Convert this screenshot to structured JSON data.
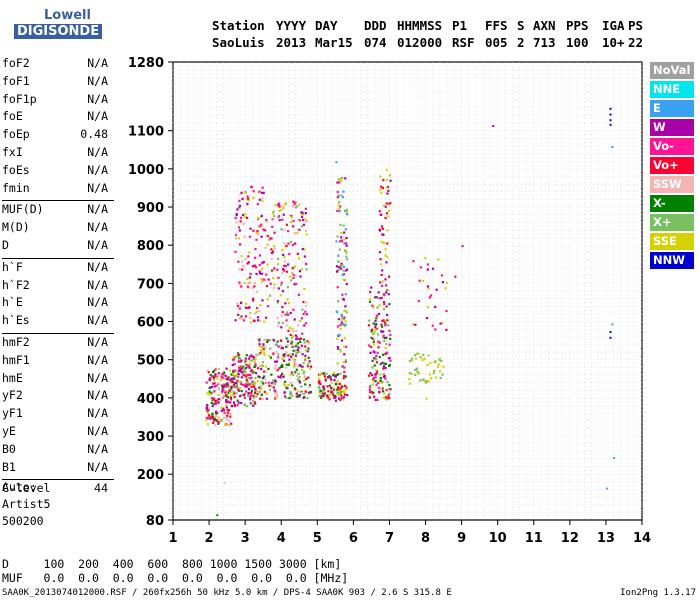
{
  "logo": {
    "line1": "Lowell",
    "line2": "DIGISONDE"
  },
  "header": {
    "row1": [
      "Station",
      "YYYY",
      "DAY",
      "DDD",
      "HHMMSS",
      "P1",
      "FFS",
      "S",
      "AXN",
      "PPS",
      "IGA",
      "PS"
    ],
    "row2": [
      "SaoLuis",
      "2013",
      "Mar15",
      "074",
      "012000",
      "RSF",
      "005",
      "2",
      "713",
      "100",
      "10+",
      "22"
    ]
  },
  "params": {
    "group1": [
      [
        "foF2",
        "N/A"
      ],
      [
        "foF1",
        "N/A"
      ],
      [
        "foF1p",
        "N/A"
      ],
      [
        "foE",
        "N/A"
      ],
      [
        "foEp",
        "0.48"
      ],
      [
        "fxI",
        "N/A"
      ],
      [
        "foEs",
        "N/A"
      ],
      [
        "fmin",
        "N/A"
      ]
    ],
    "group2": [
      [
        "MUF(D)",
        "N/A"
      ],
      [
        "M(D)",
        "N/A"
      ],
      [
        "D",
        "N/A"
      ]
    ],
    "group3": [
      [
        "h`F",
        "N/A"
      ],
      [
        "h`F2",
        "N/A"
      ],
      [
        "h`E",
        "N/A"
      ],
      [
        "h`Es",
        "N/A"
      ]
    ],
    "group4": [
      [
        "hmF2",
        "N/A"
      ],
      [
        "hmF1",
        "N/A"
      ],
      [
        "hmE",
        "N/A"
      ],
      [
        "yF2",
        "N/A"
      ],
      [
        "yF1",
        "N/A"
      ],
      [
        "yE",
        "N/A"
      ],
      [
        "B0",
        "N/A"
      ],
      [
        "B1",
        "N/A"
      ]
    ],
    "group5": [
      [
        "C-level",
        "44"
      ]
    ]
  },
  "auto": {
    "line1": "Auto:",
    "line2": "Artist5",
    "line3": "500200"
  },
  "bottom": {
    "d_line": "D     100  200  400  600  800 1000 1500 3000 [km]",
    "muf_line": "MUF   0.0  0.0  0.0  0.0  0.0  0.0  0.0  0.0 [MHz]"
  },
  "footer": {
    "left": "SAA0K_2013074012000.RSF / 260fx256h 50 kHz 5.0 km / DPS-4 SAA0K 903 / 2.6 S 315.8 E",
    "right": "Ion2Png 1.3.17"
  },
  "legend": [
    {
      "label": "NoVal",
      "color": "#a0a0a0"
    },
    {
      "label": "NNE",
      "color": "#00e5ee"
    },
    {
      "label": "E",
      "color": "#3aa0f0"
    },
    {
      "label": "W",
      "color": "#aa00aa"
    },
    {
      "label": "Vo-",
      "color": "#ff1493"
    },
    {
      "label": "Vo+",
      "color": "#ff0033"
    },
    {
      "label": "SSW",
      "color": "#f4b4b4"
    },
    {
      "label": "X-",
      "color": "#008000"
    },
    {
      "label": "X+",
      "color": "#78c060"
    },
    {
      "label": "SSE",
      "color": "#d2d200"
    },
    {
      "label": "NNW",
      "color": "#0000cc"
    }
  ],
  "chart_data": {
    "type": "scatter",
    "title": "",
    "xlabel": "",
    "ylabel": "",
    "xlim": [
      1,
      14
    ],
    "ylim": [
      80,
      1280
    ],
    "x_ticks": [
      "1",
      "2",
      "3",
      "4",
      "5",
      "6",
      "7",
      "8",
      "9",
      "10",
      "11",
      "12",
      "13",
      "14"
    ],
    "y_ticks": [
      "80",
      "200",
      "300",
      "400",
      "500",
      "600",
      "700",
      "800",
      "900",
      "1000",
      "1100",
      "1280"
    ],
    "y_tick_values": [
      80,
      200,
      300,
      400,
      500,
      600,
      700,
      800,
      900,
      1000,
      1100,
      1280
    ],
    "clusters": [
      {
        "x": [
          1.9,
          2.6
        ],
        "y": [
          330,
          480
        ],
        "density": 200,
        "mix": [
          "#ff0033",
          "#ff1493",
          "#aa00aa",
          "#f4b4b4",
          "#008000",
          "#d2d200"
        ]
      },
      {
        "x": [
          2.6,
          3.3
        ],
        "y": [
          380,
          520
        ],
        "density": 180,
        "mix": [
          "#aa00aa",
          "#ff0033",
          "#d2d200",
          "#78c060",
          "#008000",
          "#ff1493"
        ]
      },
      {
        "x": [
          2.7,
          3.6
        ],
        "y": [
          600,
          960
        ],
        "density": 160,
        "mix": [
          "#aa00aa",
          "#ff1493",
          "#ff0033",
          "#d2d200",
          "#f4b4b4"
        ]
      },
      {
        "x": [
          3.3,
          4.8
        ],
        "y": [
          400,
          560
        ],
        "density": 260,
        "mix": [
          "#aa00aa",
          "#ff0033",
          "#d2d200",
          "#008000",
          "#78c060",
          "#f4b4b4"
        ]
      },
      {
        "x": [
          3.6,
          4.7
        ],
        "y": [
          560,
          920
        ],
        "density": 180,
        "mix": [
          "#d2d200",
          "#ff0033",
          "#aa00aa",
          "#ff1493",
          "#f4b4b4",
          "#78c060"
        ]
      },
      {
        "x": [
          5.0,
          5.8
        ],
        "y": [
          395,
          470
        ],
        "density": 120,
        "mix": [
          "#d2d200",
          "#aa00aa",
          "#78c060",
          "#008000",
          "#ff0033"
        ]
      },
      {
        "x": [
          5.5,
          5.8
        ],
        "y": [
          470,
          980
        ],
        "density": 120,
        "mix": [
          "#d2d200",
          "#ff1493",
          "#aa00aa",
          "#3aa0f0",
          "#78c060"
        ]
      },
      {
        "x": [
          6.4,
          7.0
        ],
        "y": [
          395,
          700
        ],
        "density": 170,
        "mix": [
          "#aa00aa",
          "#ff0033",
          "#d2d200",
          "#78c060",
          "#008000",
          "#ff1493"
        ]
      },
      {
        "x": [
          6.7,
          7.0
        ],
        "y": [
          700,
          990
        ],
        "density": 50,
        "mix": [
          "#d2d200",
          "#ff0033",
          "#aa00aa"
        ]
      },
      {
        "x": [
          7.5,
          8.5
        ],
        "y": [
          440,
          520
        ],
        "density": 50,
        "mix": [
          "#d2d200",
          "#78c060"
        ]
      },
      {
        "x": [
          7.6,
          8.6
        ],
        "y": [
          580,
          790
        ],
        "density": 30,
        "mix": [
          "#d2d200",
          "#ff1493",
          "#aa00aa"
        ]
      }
    ],
    "points": [
      {
        "x": 9.85,
        "y": 1115,
        "c": "#aa00aa"
      },
      {
        "x": 13.1,
        "y": 1160,
        "c": "#0000cc"
      },
      {
        "x": 13.1,
        "y": 1145,
        "c": "#0000cc"
      },
      {
        "x": 13.1,
        "y": 1130,
        "c": "#0000cc"
      },
      {
        "x": 13.1,
        "y": 1118,
        "c": "#0000cc"
      },
      {
        "x": 13.15,
        "y": 1060,
        "c": "#3aa0f0"
      },
      {
        "x": 13.1,
        "y": 575,
        "c": "#0000cc"
      },
      {
        "x": 13.1,
        "y": 560,
        "c": "#0000cc"
      },
      {
        "x": 13.15,
        "y": 595,
        "c": "#3aa0f0"
      },
      {
        "x": 13.2,
        "y": 245,
        "c": "#3aa0f0"
      },
      {
        "x": 13.0,
        "y": 165,
        "c": "#3aa0f0"
      },
      {
        "x": 9.0,
        "y": 800,
        "c": "#aa00aa"
      },
      {
        "x": 8.8,
        "y": 720,
        "c": "#aa00aa"
      },
      {
        "x": 2.2,
        "y": 95,
        "c": "#008000"
      },
      {
        "x": 2.4,
        "y": 180,
        "c": "#f4b4b4"
      },
      {
        "x": 8.0,
        "y": 400,
        "c": "#d2d200"
      },
      {
        "x": 8.2,
        "y": 470,
        "c": "#d2d200"
      },
      {
        "x": 5.5,
        "y": 1020,
        "c": "#3aa0f0"
      },
      {
        "x": 6.9,
        "y": 1000,
        "c": "#d2d200"
      }
    ]
  }
}
